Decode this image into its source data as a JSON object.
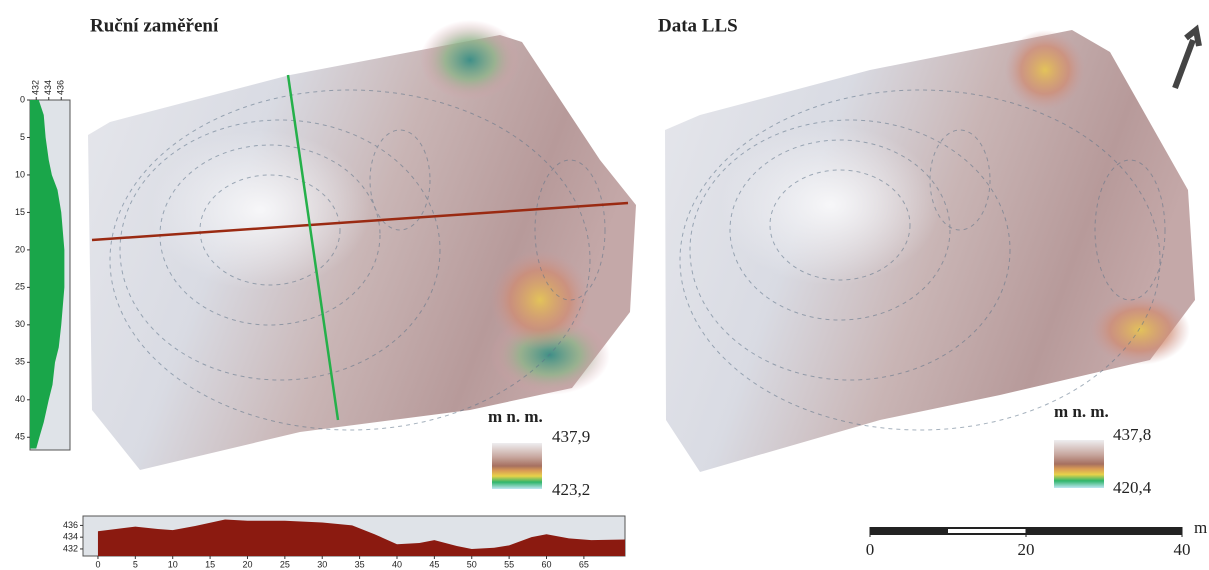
{
  "chart_data": [
    {
      "type": "area",
      "orientation": "vertical",
      "color": "#1aa64a",
      "x": [
        0,
        2,
        5,
        8,
        10,
        12,
        15,
        18,
        20,
        25,
        30,
        33,
        35,
        38,
        40,
        43,
        45,
        46.5
      ],
      "values": [
        432.4,
        433.2,
        433.5,
        434,
        434.5,
        435.4,
        436,
        436.3,
        436.5,
        436.5,
        436,
        435.6,
        435,
        434.6,
        434,
        433.2,
        432.5,
        432
      ],
      "ylim": [
        0,
        46.7
      ],
      "yticks": [
        0,
        5,
        10,
        15,
        20,
        25,
        30,
        35,
        40,
        45
      ],
      "xlim": [
        431,
        437.4
      ],
      "xticks": [
        432,
        434,
        436
      ]
    },
    {
      "type": "area",
      "orientation": "horizontal",
      "color": "#8b1a10",
      "x": [
        0,
        5,
        8,
        10,
        13,
        17,
        20,
        25,
        30,
        34,
        37,
        40,
        43,
        45,
        48,
        50,
        53,
        55,
        58,
        60,
        63,
        66,
        70.5
      ],
      "values": [
        435,
        435.8,
        435.4,
        435.2,
        435.9,
        437,
        436.8,
        436.8,
        436.5,
        436,
        434.5,
        432.8,
        433,
        433.5,
        432.5,
        432,
        432.2,
        432.6,
        434,
        434.5,
        433.8,
        433.5,
        433.6
      ],
      "xlim": [
        -2,
        70.5
      ],
      "xticks": [
        0,
        5,
        10,
        15,
        20,
        25,
        30,
        35,
        40,
        45,
        50,
        55,
        60,
        65
      ],
      "ylim": [
        430.8,
        437.6
      ],
      "yticks": [
        432,
        434,
        436
      ]
    }
  ],
  "left_map": {
    "title": "Ruční zaměření",
    "legend": {
      "unit": "m n. m.",
      "max": "437,9",
      "min": "423,2"
    }
  },
  "right_map": {
    "title": "Data LLS",
    "legend": {
      "unit": "m n. m.",
      "max": "437,8",
      "min": "420,4"
    }
  },
  "scale_bar": {
    "unit": "m",
    "xlim": [
      0,
      40
    ],
    "ticks": [
      0,
      20,
      40
    ]
  }
}
